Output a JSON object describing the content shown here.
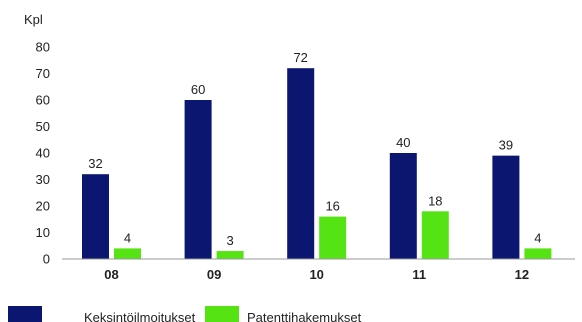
{
  "chart_data": {
    "type": "bar",
    "ylabel": "Kpl",
    "ylim": [
      0,
      80
    ],
    "yticks": [
      0,
      10,
      20,
      30,
      40,
      50,
      60,
      70,
      80
    ],
    "categories": [
      "08",
      "09",
      "10",
      "11",
      "12"
    ],
    "series": [
      {
        "name": "Keksintöilmoitukset",
        "color": "#0b1670",
        "values": [
          32,
          60,
          72,
          40,
          39
        ]
      },
      {
        "name": "Patenttihakemukset",
        "color": "#55e314",
        "values": [
          4,
          3,
          16,
          18,
          4
        ]
      }
    ],
    "grid": false,
    "legend_position": "bottom-left"
  }
}
